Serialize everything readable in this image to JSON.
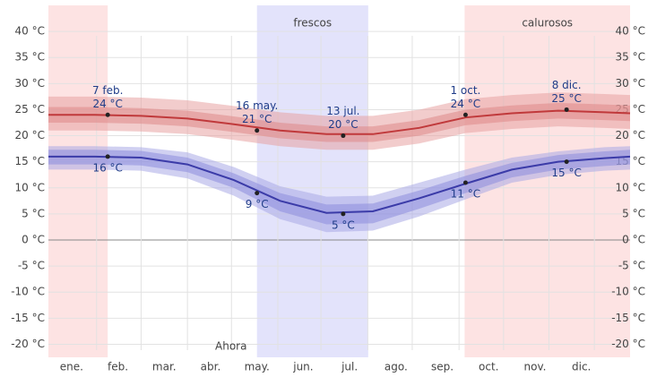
{
  "chart_data": {
    "type": "line",
    "x": [
      0,
      1,
      2,
      3,
      4,
      5,
      6,
      7,
      8,
      9,
      10,
      11,
      12,
      12.55
    ],
    "xlim": [
      0,
      12.55
    ],
    "xticks": [
      {
        "value": 0.5,
        "label": "ene."
      },
      {
        "value": 1.5,
        "label": "feb."
      },
      {
        "value": 2.5,
        "label": "mar."
      },
      {
        "value": 3.5,
        "label": "abr."
      },
      {
        "value": 4.5,
        "label": "may."
      },
      {
        "value": 5.5,
        "label": "jun."
      },
      {
        "value": 6.5,
        "label": "jul."
      },
      {
        "value": 7.5,
        "label": "ago."
      },
      {
        "value": 8.5,
        "label": "sep."
      },
      {
        "value": 9.5,
        "label": "oct."
      },
      {
        "value": 10.5,
        "label": "nov."
      },
      {
        "value": 11.5,
        "label": "dic."
      }
    ],
    "xgrid": [
      1.04,
      2,
      3,
      3.95,
      4.95,
      5.88,
      6.89,
      7.85,
      8.86,
      9.82,
      10.8,
      11.78
    ],
    "ylim": [
      -22.5,
      45
    ],
    "yticks": [
      {
        "value": -20,
        "label": "-20 °C"
      },
      {
        "value": -15,
        "label": "-15 °C"
      },
      {
        "value": -10,
        "label": "-10 °C"
      },
      {
        "value": -5,
        "label": "-5 °C"
      },
      {
        "value": 0,
        "label": "0 °C"
      },
      {
        "value": 5,
        "label": "5 °C"
      },
      {
        "value": 10,
        "label": "10 °C"
      },
      {
        "value": 15,
        "label": "15 °C"
      },
      {
        "value": 20,
        "label": "20 °C"
      },
      {
        "value": 25,
        "label": "25 °C"
      },
      {
        "value": 30,
        "label": "30 °C"
      },
      {
        "value": 35,
        "label": "35 °C"
      },
      {
        "value": 40,
        "label": "40 °C"
      }
    ],
    "grid": true,
    "regions": [
      {
        "x": [
          0,
          1.28
        ],
        "color": "#fde3e3"
      },
      {
        "x": [
          4.5,
          6.9
        ],
        "color": "#e3e3fb",
        "label": "frescos"
      },
      {
        "x": [
          8.98,
          12.55
        ],
        "color": "#fde3e3",
        "label": "calurosos"
      }
    ],
    "series": [
      {
        "color": "#c0393b",
        "values": [
          24,
          24,
          23.8,
          23.3,
          22.2,
          21,
          20.3,
          20.3,
          21.5,
          23.5,
          24.3,
          24.8,
          24.5,
          24.3
        ],
        "bands": [
          {
            "color": "#e8a2a2",
            "low": [
              21,
              21,
              20.8,
              20.3,
              19.2,
              18,
              17.3,
              17.3,
              18.5,
              20.5,
              21.3,
              21.8,
              21.5,
              21.3
            ],
            "high": [
              27.5,
              27.5,
              27.3,
              26.8,
              25.7,
              24.5,
              23.8,
              23.8,
              25,
              27,
              27.8,
              28.3,
              28,
              27.8
            ]
          },
          {
            "color": "#de8888",
            "low": [
              22.5,
              22.5,
              22.3,
              21.8,
              20.7,
              19.5,
              18.8,
              18.8,
              20,
              22,
              22.8,
              23.3,
              23,
              22.8
            ],
            "high": [
              25.5,
              25.5,
              25.3,
              24.8,
              23.7,
              22.5,
              21.8,
              21.8,
              23,
              25,
              25.8,
              26.3,
              26,
              25.8
            ]
          }
        ]
      },
      {
        "color": "#3b3ba8",
        "values": [
          16,
          16,
          15.8,
          14.5,
          11.5,
          7.5,
          5.2,
          5.5,
          8,
          10.8,
          13.5,
          15,
          15.7,
          16
        ],
        "bands": [
          {
            "color": "#a9a9e6",
            "low": [
              13.5,
              13.5,
              13.3,
              11.8,
              8.5,
              4,
              1.5,
              1.8,
              4.5,
              7.8,
              11,
              12.5,
              13.3,
              13.5
            ],
            "high": [
              18,
              18,
              17.8,
              16.8,
              14,
              10.3,
              8.3,
              8.5,
              11,
              13.5,
              15.8,
              17,
              17.8,
              18
            ]
          },
          {
            "color": "#8c8cdc",
            "low": [
              14.5,
              14.5,
              14.3,
              13,
              10,
              5.5,
              3,
              3.2,
              6,
              9,
              12,
              13.5,
              14.2,
              14.5
            ],
            "high": [
              17.3,
              17.3,
              17.1,
              15.8,
              12.8,
              9,
              6.8,
              7,
              9.5,
              12.3,
              14.8,
              16.3,
              17,
              17.3
            ]
          }
        ]
      }
    ],
    "annotations": [
      {
        "x": 1.28,
        "value": 24,
        "date": "7 feb.",
        "label": "24 °C",
        "side": "above"
      },
      {
        "x": 4.5,
        "value": 21,
        "date": "16 may.",
        "label": "21 °C",
        "side": "above"
      },
      {
        "x": 6.36,
        "value": 20,
        "date": "13 jul.",
        "label": "20 °C",
        "side": "above"
      },
      {
        "x": 9.0,
        "value": 24,
        "date": "1 oct.",
        "label": "24 °C",
        "side": "above"
      },
      {
        "x": 11.18,
        "value": 25,
        "date": "8 dic.",
        "label": "25 °C",
        "side": "above"
      },
      {
        "x": 1.28,
        "value": 16,
        "label": "16 °C",
        "side": "below"
      },
      {
        "x": 4.5,
        "value": 9,
        "label": "9 °C",
        "side": "below"
      },
      {
        "x": 6.36,
        "value": 5,
        "label": "5 °C",
        "side": "below"
      },
      {
        "x": 9.0,
        "value": 11,
        "label": "11 °C",
        "side": "below"
      },
      {
        "x": 11.18,
        "value": 15,
        "label": "15 °C",
        "side": "below"
      }
    ],
    "now": {
      "text": "Ahora",
      "x": 3.94
    }
  }
}
